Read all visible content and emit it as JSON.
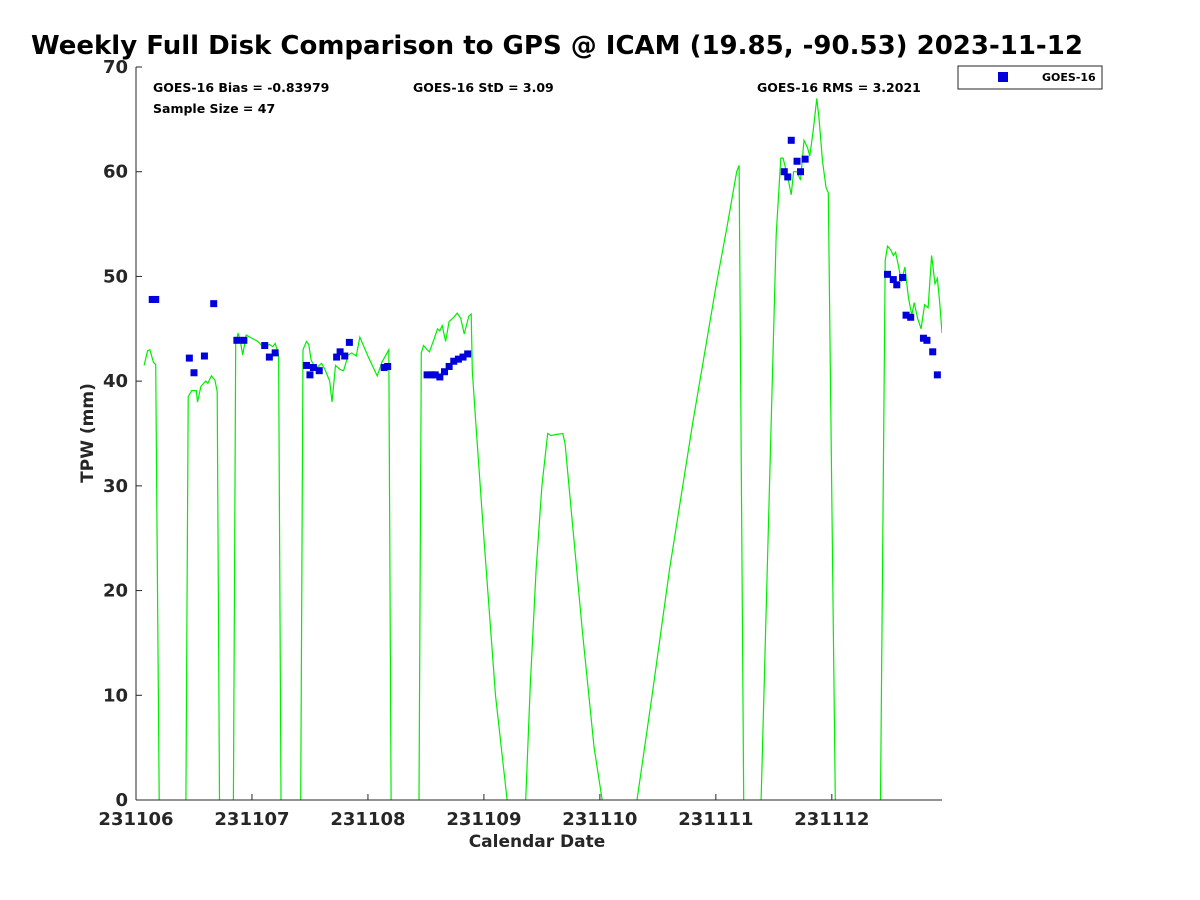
{
  "chart_data": {
    "type": "scatter",
    "title": "Weekly Full Disk Comparison to GPS @ ICAM (19.85, -90.53) 2023-11-12",
    "xlabel": "Calendar Date",
    "ylabel": "TPW (mm)",
    "xlim": [
      0,
      6.95
    ],
    "ylim": [
      0,
      70
    ],
    "x_unit": "days since 231106",
    "yticks": [
      0,
      10,
      20,
      30,
      40,
      50,
      60,
      70
    ],
    "xticks": [
      {
        "x": 0,
        "label": "231106"
      },
      {
        "x": 1,
        "label": "231107"
      },
      {
        "x": 2,
        "label": "231108"
      },
      {
        "x": 3,
        "label": "231109"
      },
      {
        "x": 4,
        "label": "231110"
      },
      {
        "x": 5,
        "label": "231111"
      },
      {
        "x": 6,
        "label": "231112"
      }
    ],
    "grid": false,
    "legend_position": "outside top-right",
    "colors": {
      "goes16": "#0000dd",
      "gps": "#00ee00"
    },
    "stats": {
      "bias": "GOES-16 Bias = -0.83979",
      "std": "GOES-16 StD = 3.09",
      "rms": "GOES-16 RMS = 3.2021",
      "sample": "Sample Size = 47"
    },
    "series": [
      {
        "name": "GOES-16",
        "marker": "square",
        "points": [
          [
            0.14,
            47.8
          ],
          [
            0.17,
            47.8
          ],
          [
            0.46,
            42.2
          ],
          [
            0.5,
            40.8
          ],
          [
            0.59,
            42.4
          ],
          [
            0.67,
            47.4
          ],
          [
            0.87,
            43.9
          ],
          [
            0.93,
            43.9
          ],
          [
            1.11,
            43.4
          ],
          [
            1.15,
            42.3
          ],
          [
            1.2,
            42.7
          ],
          [
            1.47,
            41.5
          ],
          [
            1.5,
            40.6
          ],
          [
            1.53,
            41.3
          ],
          [
            1.58,
            41.0
          ],
          [
            1.73,
            42.3
          ],
          [
            1.76,
            42.8
          ],
          [
            1.8,
            42.4
          ],
          [
            1.84,
            43.7
          ],
          [
            2.14,
            41.3
          ],
          [
            2.17,
            41.4
          ],
          [
            2.51,
            40.6
          ],
          [
            2.55,
            40.6
          ],
          [
            2.58,
            40.6
          ],
          [
            2.62,
            40.4
          ],
          [
            2.66,
            40.9
          ],
          [
            2.7,
            41.4
          ],
          [
            2.74,
            41.9
          ],
          [
            2.78,
            42.1
          ],
          [
            2.82,
            42.3
          ],
          [
            2.86,
            42.6
          ],
          [
            5.59,
            60.0
          ],
          [
            5.62,
            59.5
          ],
          [
            5.65,
            63.0
          ],
          [
            5.7,
            61.0
          ],
          [
            5.73,
            60.0
          ],
          [
            5.77,
            61.2
          ],
          [
            6.48,
            50.2
          ],
          [
            6.53,
            49.7
          ],
          [
            6.56,
            49.2
          ],
          [
            6.61,
            49.9
          ],
          [
            6.64,
            46.3
          ],
          [
            6.68,
            46.1
          ],
          [
            6.79,
            44.1
          ],
          [
            6.82,
            43.9
          ],
          [
            6.87,
            42.8
          ],
          [
            6.91,
            40.6
          ]
        ]
      },
      {
        "marker": "line",
        "segments": [
          [
            [
              0.07,
              41.5
            ],
            [
              0.1,
              42.9
            ],
            [
              0.12,
              43.0
            ],
            [
              0.15,
              41.8
            ],
            [
              0.17,
              41.6
            ],
            [
              0.2,
              0
            ]
          ],
          [
            [
              0.43,
              0
            ],
            [
              0.45,
              38.5
            ],
            [
              0.48,
              39.1
            ],
            [
              0.52,
              39.1
            ],
            [
              0.53,
              38.0
            ],
            [
              0.56,
              39.5
            ],
            [
              0.6,
              40.0
            ],
            [
              0.62,
              39.8
            ],
            [
              0.65,
              40.5
            ],
            [
              0.68,
              40.1
            ],
            [
              0.7,
              39.0
            ],
            [
              0.72,
              0
            ]
          ],
          [
            [
              0.84,
              0
            ],
            [
              0.86,
              43.5
            ],
            [
              0.88,
              44.6
            ],
            [
              0.9,
              43.8
            ],
            [
              0.92,
              42.5
            ],
            [
              0.95,
              44.4
            ],
            [
              1.05,
              43.8
            ],
            [
              1.1,
              43.2
            ],
            [
              1.15,
              43.5
            ],
            [
              1.18,
              43.3
            ],
            [
              1.2,
              43.6
            ],
            [
              1.23,
              42.5
            ],
            [
              1.25,
              0
            ]
          ],
          [
            [
              1.42,
              0
            ],
            [
              1.44,
              43.0
            ],
            [
              1.47,
              43.8
            ],
            [
              1.49,
              43.5
            ],
            [
              1.51,
              42.0
            ],
            [
              1.55,
              41.2
            ],
            [
              1.6,
              41.7
            ],
            [
              1.63,
              41.1
            ],
            [
              1.67,
              40.0
            ],
            [
              1.69,
              38.0
            ],
            [
              1.72,
              41.5
            ],
            [
              1.76,
              41.1
            ],
            [
              1.79,
              41.0
            ],
            [
              1.83,
              42.5
            ],
            [
              1.86,
              42.7
            ],
            [
              1.9,
              42.4
            ],
            [
              1.93,
              44.2
            ],
            [
              2.0,
              42.4
            ],
            [
              2.08,
              40.5
            ],
            [
              2.12,
              41.8
            ],
            [
              2.18,
              43.0
            ],
            [
              2.2,
              0
            ]
          ],
          [
            [
              2.44,
              0
            ],
            [
              2.46,
              42.7
            ],
            [
              2.48,
              43.4
            ],
            [
              2.51,
              43.0
            ],
            [
              2.53,
              42.8
            ],
            [
              2.57,
              44.0
            ],
            [
              2.6,
              45.0
            ],
            [
              2.62,
              44.8
            ],
            [
              2.64,
              45.3
            ],
            [
              2.67,
              43.8
            ],
            [
              2.7,
              45.7
            ],
            [
              2.74,
              46.1
            ],
            [
              2.77,
              46.5
            ],
            [
              2.8,
              46.0
            ],
            [
              2.83,
              44.5
            ],
            [
              2.87,
              46.2
            ],
            [
              2.89,
              46.4
            ],
            [
              2.9,
              41.0
            ],
            [
              2.93,
              36.0
            ],
            [
              3.0,
              25.0
            ],
            [
              3.1,
              10.0
            ],
            [
              3.2,
              0
            ]
          ],
          [
            [
              3.36,
              0
            ],
            [
              3.4,
              11.0
            ],
            [
              3.45,
              22.0
            ],
            [
              3.5,
              30.0
            ],
            [
              3.55,
              35.0
            ],
            [
              3.58,
              34.8
            ],
            [
              3.62,
              34.9
            ],
            [
              3.68,
              35.0
            ],
            [
              3.7,
              34.0
            ],
            [
              3.75,
              28.0
            ],
            [
              3.85,
              16.0
            ],
            [
              3.95,
              5.0
            ],
            [
              4.02,
              0
            ]
          ],
          [
            [
              4.32,
              0
            ],
            [
              4.45,
              10.0
            ],
            [
              4.6,
              22.0
            ],
            [
              4.8,
              36.0
            ],
            [
              5.0,
              49.0
            ],
            [
              5.1,
              55.0
            ],
            [
              5.18,
              60.0
            ],
            [
              5.2,
              60.6
            ],
            [
              5.24,
              0
            ]
          ],
          [
            [
              5.39,
              0
            ],
            [
              5.52,
              54.0
            ],
            [
              5.56,
              61.3
            ],
            [
              5.58,
              61.3
            ],
            [
              5.6,
              60.4
            ],
            [
              5.62,
              59.5
            ],
            [
              5.65,
              57.8
            ],
            [
              5.67,
              60.0
            ],
            [
              5.7,
              60.0
            ],
            [
              5.73,
              59.2
            ],
            [
              5.76,
              63.0
            ],
            [
              5.79,
              62.3
            ],
            [
              5.81,
              61.5
            ],
            [
              5.84,
              64.0
            ],
            [
              5.87,
              67.0
            ],
            [
              5.89,
              65.0
            ],
            [
              5.92,
              61.0
            ],
            [
              5.95,
              58.5
            ],
            [
              5.97,
              58.0
            ],
            [
              6.03,
              0
            ]
          ],
          [
            [
              6.42,
              0
            ],
            [
              6.46,
              51.5
            ],
            [
              6.48,
              52.9
            ],
            [
              6.51,
              52.5
            ],
            [
              6.53,
              52.0
            ],
            [
              6.55,
              52.3
            ],
            [
              6.58,
              50.7
            ],
            [
              6.6,
              49.5
            ],
            [
              6.63,
              50.9
            ],
            [
              6.66,
              48.0
            ],
            [
              6.69,
              46.3
            ],
            [
              6.71,
              47.5
            ],
            [
              6.74,
              46.0
            ],
            [
              6.77,
              45.0
            ],
            [
              6.8,
              47.3
            ],
            [
              6.83,
              47.0
            ],
            [
              6.86,
              52.0
            ],
            [
              6.89,
              49.3
            ],
            [
              6.91,
              49.8
            ],
            [
              6.93,
              47.5
            ],
            [
              6.95,
              44.6
            ]
          ]
        ]
      }
    ]
  }
}
